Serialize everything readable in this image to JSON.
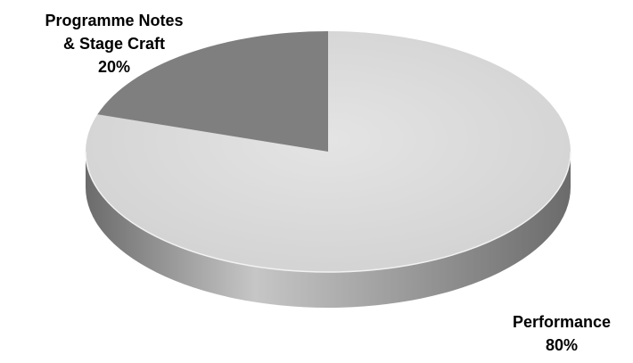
{
  "chart_data": {
    "type": "pie",
    "title": "",
    "slices": [
      {
        "label_lines": [
          "Performance"
        ],
        "percent_text": "80%",
        "value": 80
      },
      {
        "label_lines": [
          "Programme Notes",
          "& Stage Craft"
        ],
        "percent_text": "20%",
        "value": 20
      }
    ],
    "colors": {
      "top_large": "#d9d9d9",
      "top_small": "#7f7f7f",
      "side_dark": "#6b6b6b",
      "side_light": "#c6c6c6",
      "label_text": "#000000"
    },
    "style": "3d",
    "legend": "none"
  }
}
